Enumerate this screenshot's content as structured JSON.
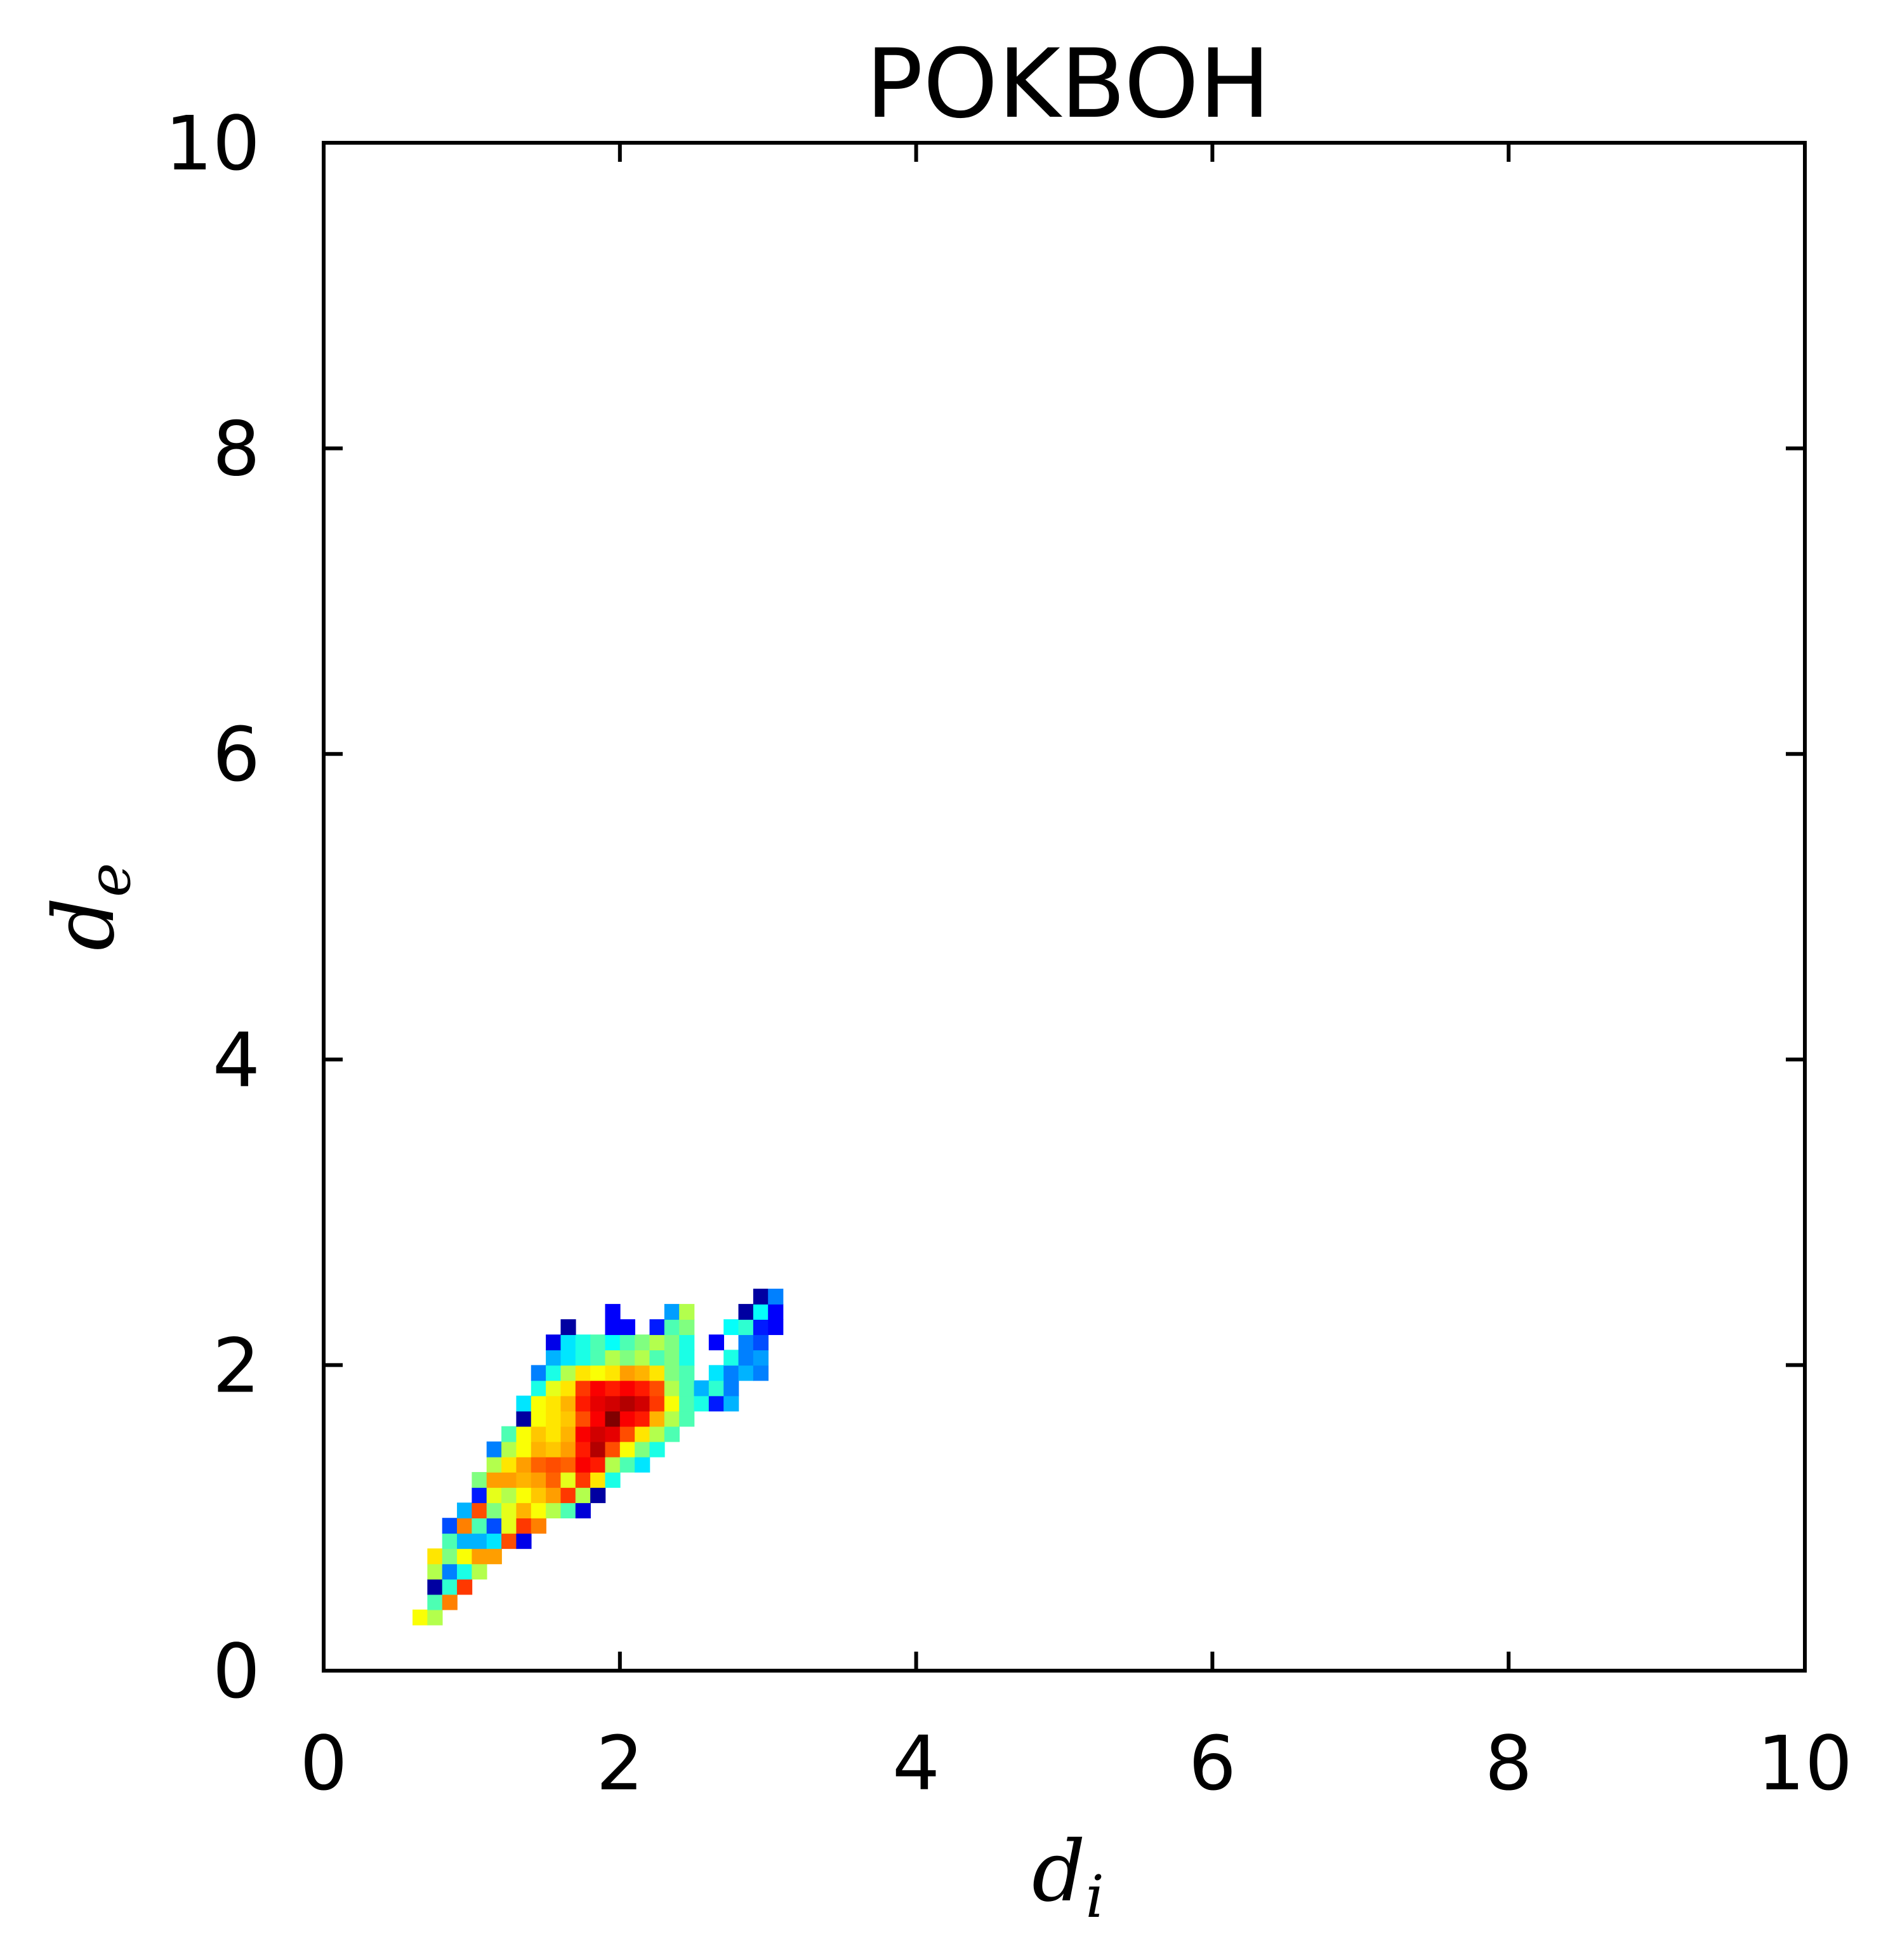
{
  "chart_data": {
    "type": "heatmap",
    "title": "POKBOH",
    "xlabel": {
      "main": "d",
      "sub": "i"
    },
    "ylabel": {
      "main": "d",
      "sub": "e"
    },
    "xlim": [
      0,
      10
    ],
    "ylim": [
      0,
      10
    ],
    "xticks": [
      "0",
      "2",
      "4",
      "6",
      "8",
      "10"
    ],
    "yticks": [
      "0",
      "2",
      "4",
      "6",
      "8",
      "10"
    ],
    "bin_size": 0.1,
    "colormap": "jet",
    "colors": {
      "jet": [
        "#00008f",
        "#0000ff",
        "#0080ff",
        "#00ffff",
        "#80ff80",
        "#ffff00",
        "#ff8000",
        "#ff0000",
        "#800000"
      ]
    },
    "cells": [
      {
        "x": 0.6,
        "y": 0.3,
        "v": 0.62
      },
      {
        "x": 0.7,
        "y": 0.3,
        "v": 0.55
      },
      {
        "x": 0.7,
        "y": 0.4,
        "v": 0.45
      },
      {
        "x": 0.8,
        "y": 0.4,
        "v": 0.75
      },
      {
        "x": 0.7,
        "y": 0.5,
        "v": 0.02
      },
      {
        "x": 0.8,
        "y": 0.5,
        "v": 0.42
      },
      {
        "x": 0.9,
        "y": 0.5,
        "v": 0.82
      },
      {
        "x": 0.7,
        "y": 0.6,
        "v": 0.55
      },
      {
        "x": 0.8,
        "y": 0.6,
        "v": 0.25
      },
      {
        "x": 0.9,
        "y": 0.6,
        "v": 0.4
      },
      {
        "x": 1.0,
        "y": 0.6,
        "v": 0.55
      },
      {
        "x": 0.7,
        "y": 0.7,
        "v": 0.65
      },
      {
        "x": 0.8,
        "y": 0.7,
        "v": 0.5
      },
      {
        "x": 0.9,
        "y": 0.7,
        "v": 0.62
      },
      {
        "x": 1.0,
        "y": 0.7,
        "v": 0.72
      },
      {
        "x": 1.1,
        "y": 0.7,
        "v": 0.72
      },
      {
        "x": 0.8,
        "y": 0.8,
        "v": 0.45
      },
      {
        "x": 0.9,
        "y": 0.8,
        "v": 0.3
      },
      {
        "x": 1.0,
        "y": 0.8,
        "v": 0.3
      },
      {
        "x": 1.1,
        "y": 0.8,
        "v": 0.35
      },
      {
        "x": 1.2,
        "y": 0.8,
        "v": 0.8
      },
      {
        "x": 1.3,
        "y": 0.8,
        "v": 0.1
      },
      {
        "x": 0.8,
        "y": 0.9,
        "v": 0.2
      },
      {
        "x": 0.9,
        "y": 0.9,
        "v": 0.75
      },
      {
        "x": 1.0,
        "y": 0.9,
        "v": 0.45
      },
      {
        "x": 1.1,
        "y": 0.9,
        "v": 0.2
      },
      {
        "x": 1.2,
        "y": 0.9,
        "v": 0.6
      },
      {
        "x": 1.3,
        "y": 0.9,
        "v": 0.82
      },
      {
        "x": 1.4,
        "y": 0.9,
        "v": 0.75
      },
      {
        "x": 0.9,
        "y": 1.0,
        "v": 0.3
      },
      {
        "x": 1.0,
        "y": 1.0,
        "v": 0.8
      },
      {
        "x": 1.1,
        "y": 1.0,
        "v": 0.5
      },
      {
        "x": 1.2,
        "y": 1.0,
        "v": 0.6
      },
      {
        "x": 1.3,
        "y": 1.0,
        "v": 0.7
      },
      {
        "x": 1.4,
        "y": 1.0,
        "v": 0.62
      },
      {
        "x": 1.5,
        "y": 1.0,
        "v": 0.55
      },
      {
        "x": 1.6,
        "y": 1.0,
        "v": 0.45
      },
      {
        "x": 1.7,
        "y": 1.0,
        "v": 0.08
      },
      {
        "x": 1.0,
        "y": 1.1,
        "v": 0.15
      },
      {
        "x": 1.1,
        "y": 1.1,
        "v": 0.6
      },
      {
        "x": 1.2,
        "y": 1.1,
        "v": 0.55
      },
      {
        "x": 1.3,
        "y": 1.1,
        "v": 0.62
      },
      {
        "x": 1.4,
        "y": 1.1,
        "v": 0.68
      },
      {
        "x": 1.5,
        "y": 1.1,
        "v": 0.72
      },
      {
        "x": 1.6,
        "y": 1.1,
        "v": 0.82
      },
      {
        "x": 1.7,
        "y": 1.1,
        "v": 0.55
      },
      {
        "x": 1.8,
        "y": 1.1,
        "v": 0.02
      },
      {
        "x": 1.0,
        "y": 1.2,
        "v": 0.5
      },
      {
        "x": 1.1,
        "y": 1.2,
        "v": 0.72
      },
      {
        "x": 1.2,
        "y": 1.2,
        "v": 0.72
      },
      {
        "x": 1.3,
        "y": 1.2,
        "v": 0.7
      },
      {
        "x": 1.4,
        "y": 1.2,
        "v": 0.72
      },
      {
        "x": 1.5,
        "y": 1.2,
        "v": 0.78
      },
      {
        "x": 1.6,
        "y": 1.2,
        "v": 0.6
      },
      {
        "x": 1.7,
        "y": 1.2,
        "v": 0.82
      },
      {
        "x": 1.8,
        "y": 1.2,
        "v": 0.65
      },
      {
        "x": 1.9,
        "y": 1.2,
        "v": 0.4
      },
      {
        "x": 1.1,
        "y": 1.3,
        "v": 0.55
      },
      {
        "x": 1.2,
        "y": 1.3,
        "v": 0.65
      },
      {
        "x": 1.3,
        "y": 1.3,
        "v": 0.72
      },
      {
        "x": 1.4,
        "y": 1.3,
        "v": 0.78
      },
      {
        "x": 1.5,
        "y": 1.3,
        "v": 0.8
      },
      {
        "x": 1.6,
        "y": 1.3,
        "v": 0.78
      },
      {
        "x": 1.7,
        "y": 1.3,
        "v": 0.88
      },
      {
        "x": 1.8,
        "y": 1.3,
        "v": 0.85
      },
      {
        "x": 1.9,
        "y": 1.3,
        "v": 0.55
      },
      {
        "x": 2.0,
        "y": 1.3,
        "v": 0.45
      },
      {
        "x": 2.1,
        "y": 1.3,
        "v": 0.35
      },
      {
        "x": 1.1,
        "y": 1.4,
        "v": 0.25
      },
      {
        "x": 1.2,
        "y": 1.4,
        "v": 0.55
      },
      {
        "x": 1.3,
        "y": 1.4,
        "v": 0.62
      },
      {
        "x": 1.4,
        "y": 1.4,
        "v": 0.7
      },
      {
        "x": 1.5,
        "y": 1.4,
        "v": 0.68
      },
      {
        "x": 1.6,
        "y": 1.4,
        "v": 0.72
      },
      {
        "x": 1.7,
        "y": 1.4,
        "v": 0.85
      },
      {
        "x": 1.8,
        "y": 1.4,
        "v": 0.95
      },
      {
        "x": 1.9,
        "y": 1.4,
        "v": 0.8
      },
      {
        "x": 2.0,
        "y": 1.4,
        "v": 0.62
      },
      {
        "x": 2.1,
        "y": 1.4,
        "v": 0.5
      },
      {
        "x": 2.2,
        "y": 1.4,
        "v": 0.4
      },
      {
        "x": 1.2,
        "y": 1.5,
        "v": 0.45
      },
      {
        "x": 1.3,
        "y": 1.5,
        "v": 0.62
      },
      {
        "x": 1.4,
        "y": 1.5,
        "v": 0.68
      },
      {
        "x": 1.5,
        "y": 1.5,
        "v": 0.65
      },
      {
        "x": 1.6,
        "y": 1.5,
        "v": 0.7
      },
      {
        "x": 1.7,
        "y": 1.5,
        "v": 0.88
      },
      {
        "x": 1.8,
        "y": 1.5,
        "v": 0.92
      },
      {
        "x": 1.9,
        "y": 1.5,
        "v": 0.9
      },
      {
        "x": 2.0,
        "y": 1.5,
        "v": 0.8
      },
      {
        "x": 2.1,
        "y": 1.5,
        "v": 0.65
      },
      {
        "x": 2.2,
        "y": 1.5,
        "v": 0.55
      },
      {
        "x": 2.3,
        "y": 1.5,
        "v": 0.45
      },
      {
        "x": 1.3,
        "y": 1.6,
        "v": 0.02
      },
      {
        "x": 1.4,
        "y": 1.6,
        "v": 0.62
      },
      {
        "x": 1.5,
        "y": 1.6,
        "v": 0.65
      },
      {
        "x": 1.6,
        "y": 1.6,
        "v": 0.68
      },
      {
        "x": 1.7,
        "y": 1.6,
        "v": 0.8
      },
      {
        "x": 1.8,
        "y": 1.6,
        "v": 0.88
      },
      {
        "x": 1.9,
        "y": 1.6,
        "v": 1.0
      },
      {
        "x": 2.0,
        "y": 1.6,
        "v": 0.88
      },
      {
        "x": 2.1,
        "y": 1.6,
        "v": 0.85
      },
      {
        "x": 2.2,
        "y": 1.6,
        "v": 0.7
      },
      {
        "x": 2.3,
        "y": 1.6,
        "v": 0.55
      },
      {
        "x": 2.4,
        "y": 1.6,
        "v": 0.45
      },
      {
        "x": 1.3,
        "y": 1.7,
        "v": 0.35
      },
      {
        "x": 1.4,
        "y": 1.7,
        "v": 0.62
      },
      {
        "x": 1.5,
        "y": 1.7,
        "v": 0.65
      },
      {
        "x": 1.6,
        "y": 1.7,
        "v": 0.7
      },
      {
        "x": 1.7,
        "y": 1.7,
        "v": 0.85
      },
      {
        "x": 1.8,
        "y": 1.7,
        "v": 0.9
      },
      {
        "x": 1.9,
        "y": 1.7,
        "v": 0.92
      },
      {
        "x": 2.0,
        "y": 1.7,
        "v": 0.95
      },
      {
        "x": 2.1,
        "y": 1.7,
        "v": 0.92
      },
      {
        "x": 2.2,
        "y": 1.7,
        "v": 0.82
      },
      {
        "x": 2.3,
        "y": 1.7,
        "v": 0.62
      },
      {
        "x": 2.4,
        "y": 1.7,
        "v": 0.45
      },
      {
        "x": 2.5,
        "y": 1.7,
        "v": 0.4
      },
      {
        "x": 2.6,
        "y": 1.7,
        "v": 0.15
      },
      {
        "x": 2.7,
        "y": 1.7,
        "v": 0.3
      },
      {
        "x": 1.4,
        "y": 1.8,
        "v": 0.4
      },
      {
        "x": 1.5,
        "y": 1.8,
        "v": 0.6
      },
      {
        "x": 1.6,
        "y": 1.8,
        "v": 0.65
      },
      {
        "x": 1.7,
        "y": 1.8,
        "v": 0.82
      },
      {
        "x": 1.8,
        "y": 1.8,
        "v": 0.88
      },
      {
        "x": 1.9,
        "y": 1.8,
        "v": 0.85
      },
      {
        "x": 2.0,
        "y": 1.8,
        "v": 0.88
      },
      {
        "x": 2.1,
        "y": 1.8,
        "v": 0.85
      },
      {
        "x": 2.2,
        "y": 1.8,
        "v": 0.8
      },
      {
        "x": 2.3,
        "y": 1.8,
        "v": 0.55
      },
      {
        "x": 2.4,
        "y": 1.8,
        "v": 0.45
      },
      {
        "x": 2.5,
        "y": 1.8,
        "v": 0.3
      },
      {
        "x": 2.6,
        "y": 1.8,
        "v": 0.42
      },
      {
        "x": 2.7,
        "y": 1.8,
        "v": 0.25
      },
      {
        "x": 1.4,
        "y": 1.9,
        "v": 0.25
      },
      {
        "x": 1.5,
        "y": 1.9,
        "v": 0.4
      },
      {
        "x": 1.6,
        "y": 1.9,
        "v": 0.55
      },
      {
        "x": 1.7,
        "y": 1.9,
        "v": 0.65
      },
      {
        "x": 1.8,
        "y": 1.9,
        "v": 0.62
      },
      {
        "x": 1.9,
        "y": 1.9,
        "v": 0.65
      },
      {
        "x": 2.0,
        "y": 1.9,
        "v": 0.72
      },
      {
        "x": 2.1,
        "y": 1.9,
        "v": 0.7
      },
      {
        "x": 2.2,
        "y": 1.9,
        "v": 0.65
      },
      {
        "x": 2.3,
        "y": 1.9,
        "v": 0.5
      },
      {
        "x": 2.4,
        "y": 1.9,
        "v": 0.45
      },
      {
        "x": 2.6,
        "y": 1.9,
        "v": 0.35
      },
      {
        "x": 2.7,
        "y": 1.9,
        "v": 0.25
      },
      {
        "x": 2.8,
        "y": 1.9,
        "v": 0.3
      },
      {
        "x": 2.9,
        "y": 1.9,
        "v": 0.25
      },
      {
        "x": 1.5,
        "y": 2.0,
        "v": 0.3
      },
      {
        "x": 1.6,
        "y": 2.0,
        "v": 0.35
      },
      {
        "x": 1.7,
        "y": 2.0,
        "v": 0.4
      },
      {
        "x": 1.8,
        "y": 2.0,
        "v": 0.45
      },
      {
        "x": 1.9,
        "y": 2.0,
        "v": 0.55
      },
      {
        "x": 2.0,
        "y": 2.0,
        "v": 0.5
      },
      {
        "x": 2.1,
        "y": 2.0,
        "v": 0.55
      },
      {
        "x": 2.2,
        "y": 2.0,
        "v": 0.45
      },
      {
        "x": 2.3,
        "y": 2.0,
        "v": 0.5
      },
      {
        "x": 2.4,
        "y": 2.0,
        "v": 0.4
      },
      {
        "x": 2.7,
        "y": 2.0,
        "v": 0.4
      },
      {
        "x": 2.8,
        "y": 2.0,
        "v": 0.25
      },
      {
        "x": 2.9,
        "y": 2.0,
        "v": 0.28
      },
      {
        "x": 1.5,
        "y": 2.1,
        "v": 0.1
      },
      {
        "x": 1.6,
        "y": 2.1,
        "v": 0.35
      },
      {
        "x": 1.7,
        "y": 2.1,
        "v": 0.4
      },
      {
        "x": 1.8,
        "y": 2.1,
        "v": 0.45
      },
      {
        "x": 1.9,
        "y": 2.1,
        "v": 0.38
      },
      {
        "x": 2.0,
        "y": 2.1,
        "v": 0.45
      },
      {
        "x": 2.1,
        "y": 2.1,
        "v": 0.5
      },
      {
        "x": 2.2,
        "y": 2.1,
        "v": 0.55
      },
      {
        "x": 2.3,
        "y": 2.1,
        "v": 0.5
      },
      {
        "x": 2.4,
        "y": 2.1,
        "v": 0.4
      },
      {
        "x": 2.6,
        "y": 2.1,
        "v": 0.12
      },
      {
        "x": 2.8,
        "y": 2.1,
        "v": 0.25
      },
      {
        "x": 2.9,
        "y": 2.1,
        "v": 0.2
      },
      {
        "x": 1.6,
        "y": 2.2,
        "v": 0.02
      },
      {
        "x": 1.9,
        "y": 2.2,
        "v": 0.12
      },
      {
        "x": 2.0,
        "y": 2.2,
        "v": 0.12
      },
      {
        "x": 2.2,
        "y": 2.2,
        "v": 0.15
      },
      {
        "x": 2.3,
        "y": 2.2,
        "v": 0.45
      },
      {
        "x": 2.4,
        "y": 2.2,
        "v": 0.5
      },
      {
        "x": 2.7,
        "y": 2.2,
        "v": 0.38
      },
      {
        "x": 2.8,
        "y": 2.2,
        "v": 0.42
      },
      {
        "x": 2.9,
        "y": 2.2,
        "v": 0.15
      },
      {
        "x": 3.0,
        "y": 2.2,
        "v": 0.12
      },
      {
        "x": 1.9,
        "y": 2.3,
        "v": 0.12
      },
      {
        "x": 2.3,
        "y": 2.3,
        "v": 0.28
      },
      {
        "x": 2.4,
        "y": 2.3,
        "v": 0.55
      },
      {
        "x": 2.8,
        "y": 2.3,
        "v": 0.02
      },
      {
        "x": 2.9,
        "y": 2.3,
        "v": 0.38
      },
      {
        "x": 3.0,
        "y": 2.3,
        "v": 0.12
      },
      {
        "x": 2.9,
        "y": 2.4,
        "v": 0.02
      },
      {
        "x": 3.0,
        "y": 2.4,
        "v": 0.25
      }
    ]
  }
}
